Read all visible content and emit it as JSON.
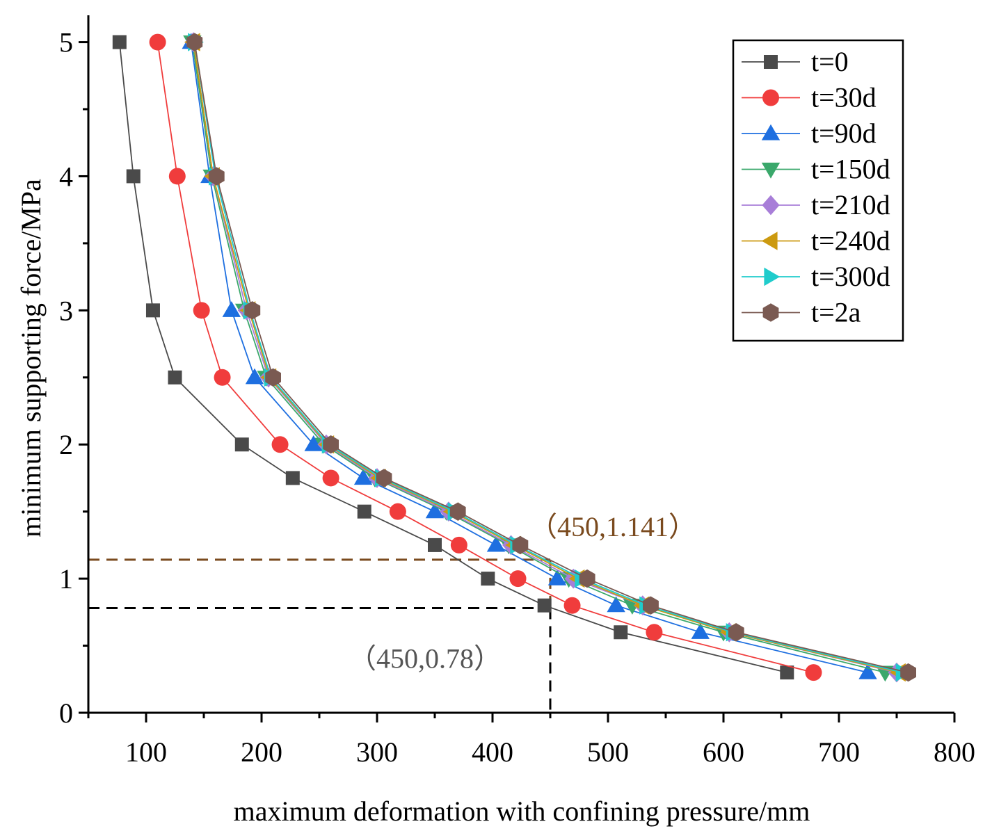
{
  "chart_data": {
    "type": "line",
    "title": "",
    "xlabel": "maximum deformation with confining pressure/mm",
    "ylabel": "minimum supporting force/MPa",
    "xlim": [
      50,
      800
    ],
    "ylim": [
      0,
      5.2
    ],
    "x_ticks": [
      100,
      200,
      300,
      400,
      500,
      600,
      700,
      800
    ],
    "y_ticks": [
      0,
      1,
      2,
      3,
      4,
      5
    ],
    "grid": false,
    "legend_position": "top-right",
    "series": [
      {
        "name": "t=0",
        "color": "#4a4a4a",
        "marker": "square",
        "x": [
          77,
          89,
          106,
          125,
          183,
          227,
          289,
          350,
          396,
          445,
          511,
          655
        ],
        "y": [
          5,
          4,
          3,
          2.5,
          2,
          1.75,
          1.5,
          1.25,
          1,
          0.8,
          0.6,
          0.3
        ]
      },
      {
        "name": "t=30d",
        "color": "#f03c3c",
        "marker": "circle",
        "x": [
          110,
          127,
          148,
          166,
          216,
          260,
          318,
          371,
          422,
          469,
          540,
          678
        ],
        "y": [
          5,
          4,
          3,
          2.5,
          2,
          1.75,
          1.5,
          1.25,
          1,
          0.8,
          0.6,
          0.3
        ]
      },
      {
        "name": "t=90d",
        "color": "#1e6fe0",
        "marker": "triangle-up",
        "x": [
          139,
          155,
          174,
          194,
          245,
          288,
          350,
          403,
          456,
          507,
          580,
          725
        ],
        "y": [
          5,
          4,
          3,
          2.5,
          2,
          1.75,
          1.5,
          1.25,
          1,
          0.8,
          0.6,
          0.3
        ]
      },
      {
        "name": "t=150d",
        "color": "#3aa86b",
        "marker": "triangle-down",
        "x": [
          140,
          157,
          185,
          204,
          254,
          298,
          360,
          414,
          466,
          521,
          600,
          740
        ],
        "y": [
          5,
          4,
          3,
          2.5,
          2,
          1.75,
          1.5,
          1.25,
          1,
          0.8,
          0.6,
          0.3
        ]
      },
      {
        "name": "t=210d",
        "color": "#a87ed8",
        "marker": "diamond",
        "x": [
          141,
          158,
          187,
          206,
          256,
          300,
          362,
          416,
          470,
          530,
          605,
          750
        ],
        "y": [
          5,
          4,
          3,
          2.5,
          2,
          1.75,
          1.5,
          1.25,
          1,
          0.8,
          0.6,
          0.3
        ]
      },
      {
        "name": "t=240d",
        "color": "#cc9a10",
        "marker": "triangle-left",
        "x": [
          141,
          158,
          189,
          207,
          257,
          302,
          365,
          419,
          474,
          530,
          605,
          752
        ],
        "y": [
          5,
          4,
          3,
          2.5,
          2,
          1.75,
          1.5,
          1.25,
          1,
          0.8,
          0.6,
          0.3
        ]
      },
      {
        "name": "t=300d",
        "color": "#20cccc",
        "marker": "triangle-right",
        "x": [
          142,
          160,
          190,
          208,
          258,
          304,
          367,
          421,
          477,
          533,
          608,
          755
        ],
        "y": [
          5,
          4,
          3,
          2.5,
          2,
          1.75,
          1.5,
          1.25,
          1,
          0.8,
          0.6,
          0.3
        ]
      },
      {
        "name": "t=2a",
        "color": "#7a5a52",
        "marker": "hexagon",
        "x": [
          142,
          161,
          192,
          210,
          260,
          306,
          370,
          424,
          482,
          537,
          611,
          760
        ],
        "y": [
          5,
          4,
          3,
          2.5,
          2,
          1.75,
          1.5,
          1.25,
          1,
          0.8,
          0.6,
          0.3
        ]
      }
    ],
    "annotations": [
      {
        "label": "（450,1.141）",
        "x": 450,
        "y": 1.141,
        "color": "#7a4a1e"
      },
      {
        "label": "（450,0.78）",
        "x": 450,
        "y": 0.78,
        "color": "#555555"
      }
    ]
  }
}
